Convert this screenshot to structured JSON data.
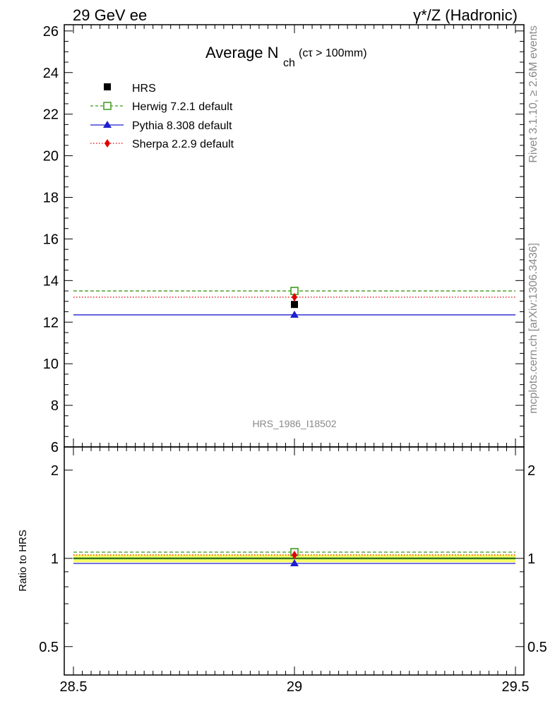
{
  "header": {
    "left_label": "29 GeV ee",
    "right_label": "γ*/Z (Hadronic)"
  },
  "side_labels": {
    "rivet": "Rivet 3.1.10, ≥ 2.6M events",
    "mcplots": "mcplots.cern.ch [arXiv:1306.3436]"
  },
  "chart_data": [
    {
      "type": "line",
      "title": "Average N",
      "title_subscript": "ch",
      "title_suffix": "(cτ > 100mm)",
      "watermark": "HRS_1986_I18502",
      "xlim": [
        28.5,
        29.5
      ],
      "ylim": [
        6,
        26.3
      ],
      "y_ticks": [
        6,
        8,
        10,
        12,
        14,
        16,
        18,
        20,
        22,
        24,
        26
      ],
      "legend_position": "top-left",
      "data": {
        "name": "HRS",
        "x": 29,
        "y": 12.85,
        "color": "#000000"
      },
      "series": [
        {
          "name": "Herwig 7.2.1 default",
          "value": 13.5,
          "color": "#3f9a1c",
          "style": "dashed",
          "marker": "open-square"
        },
        {
          "name": "Pythia 8.308 default",
          "value": 12.35,
          "color": "#1f1fd0",
          "style": "solid",
          "marker": "triangle"
        },
        {
          "name": "Sherpa 2.2.9 default",
          "value": 13.2,
          "color": "#e00000",
          "style": "dotted",
          "marker": "diamond"
        }
      ]
    },
    {
      "type": "line",
      "ylabel": "Ratio to HRS",
      "ylim": [
        0.4,
        2.4
      ],
      "y_scale": "log",
      "y_tick_labels": [
        0.5,
        1,
        2
      ],
      "xlim": [
        28.5,
        29.5
      ],
      "x_tick_labels": [
        28.5,
        29,
        29.5
      ],
      "band": {
        "center": 1.0,
        "outer": [
          0.97,
          1.03
        ],
        "inner": [
          0.99,
          1.01
        ],
        "outer_color": "#ffff66",
        "inner_color": "#99ee55"
      },
      "series": [
        {
          "name": "Herwig 7.2.1 default",
          "value": 1.05,
          "color": "#3f9a1c"
        },
        {
          "name": "Pythia 8.308 default",
          "value": 0.961,
          "color": "#1f1fd0"
        },
        {
          "name": "Sherpa 2.2.9 default",
          "value": 1.027,
          "color": "#e00000"
        }
      ]
    }
  ]
}
